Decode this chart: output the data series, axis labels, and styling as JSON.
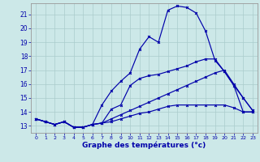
{
  "xlabel": "Graphe des températures (°c)",
  "bg_color": "#cce8e8",
  "grid_color": "#aacccc",
  "line_color": "#0000aa",
  "xlim": [
    -0.5,
    23.5
  ],
  "ylim": [
    12.5,
    21.8
  ],
  "xticks": [
    0,
    1,
    2,
    3,
    4,
    5,
    6,
    7,
    8,
    9,
    10,
    11,
    12,
    13,
    14,
    15,
    16,
    17,
    18,
    19,
    20,
    21,
    22,
    23
  ],
  "yticks": [
    13,
    14,
    15,
    16,
    17,
    18,
    19,
    20,
    21
  ],
  "line_max_x": [
    0,
    1,
    2,
    3,
    4,
    5,
    6,
    7,
    8,
    9,
    10,
    11,
    12,
    13,
    14,
    15,
    16,
    17,
    18,
    19,
    20,
    21,
    22,
    23
  ],
  "line_max_y": [
    13.5,
    13.3,
    13.1,
    13.3,
    12.9,
    12.9,
    13.1,
    14.5,
    15.5,
    16.2,
    16.8,
    18.5,
    19.4,
    19.0,
    21.3,
    21.6,
    21.5,
    21.1,
    19.8,
    17.7,
    16.9,
    15.9,
    15.0,
    14.1
  ],
  "line_mid2_x": [
    0,
    1,
    2,
    3,
    4,
    5,
    6,
    7,
    8,
    9,
    10,
    11,
    12,
    13,
    14,
    15,
    16,
    17,
    18,
    19,
    20,
    21,
    22,
    23
  ],
  "line_mid2_y": [
    13.5,
    13.3,
    13.1,
    13.3,
    12.9,
    12.9,
    13.1,
    13.2,
    14.2,
    14.5,
    15.9,
    16.4,
    16.6,
    16.7,
    16.9,
    17.1,
    17.3,
    17.6,
    17.8,
    17.8,
    16.9,
    15.9,
    14.0,
    14.0
  ],
  "line_mid1_x": [
    0,
    1,
    2,
    3,
    4,
    5,
    6,
    7,
    8,
    9,
    10,
    11,
    12,
    13,
    14,
    15,
    16,
    17,
    18,
    19,
    20,
    21,
    22,
    23
  ],
  "line_mid1_y": [
    13.5,
    13.3,
    13.1,
    13.3,
    12.9,
    12.9,
    13.1,
    13.2,
    13.5,
    13.8,
    14.1,
    14.4,
    14.7,
    15.0,
    15.3,
    15.6,
    15.9,
    16.2,
    16.5,
    16.8,
    17.0,
    16.0,
    15.0,
    14.1
  ],
  "line_min_x": [
    0,
    1,
    2,
    3,
    4,
    5,
    6,
    7,
    8,
    9,
    10,
    11,
    12,
    13,
    14,
    15,
    16,
    17,
    18,
    19,
    20,
    21,
    22,
    23
  ],
  "line_min_y": [
    13.5,
    13.3,
    13.1,
    13.3,
    12.9,
    12.9,
    13.1,
    13.2,
    13.3,
    13.5,
    13.7,
    13.9,
    14.0,
    14.2,
    14.4,
    14.5,
    14.5,
    14.5,
    14.5,
    14.5,
    14.5,
    14.3,
    14.0,
    14.0
  ]
}
